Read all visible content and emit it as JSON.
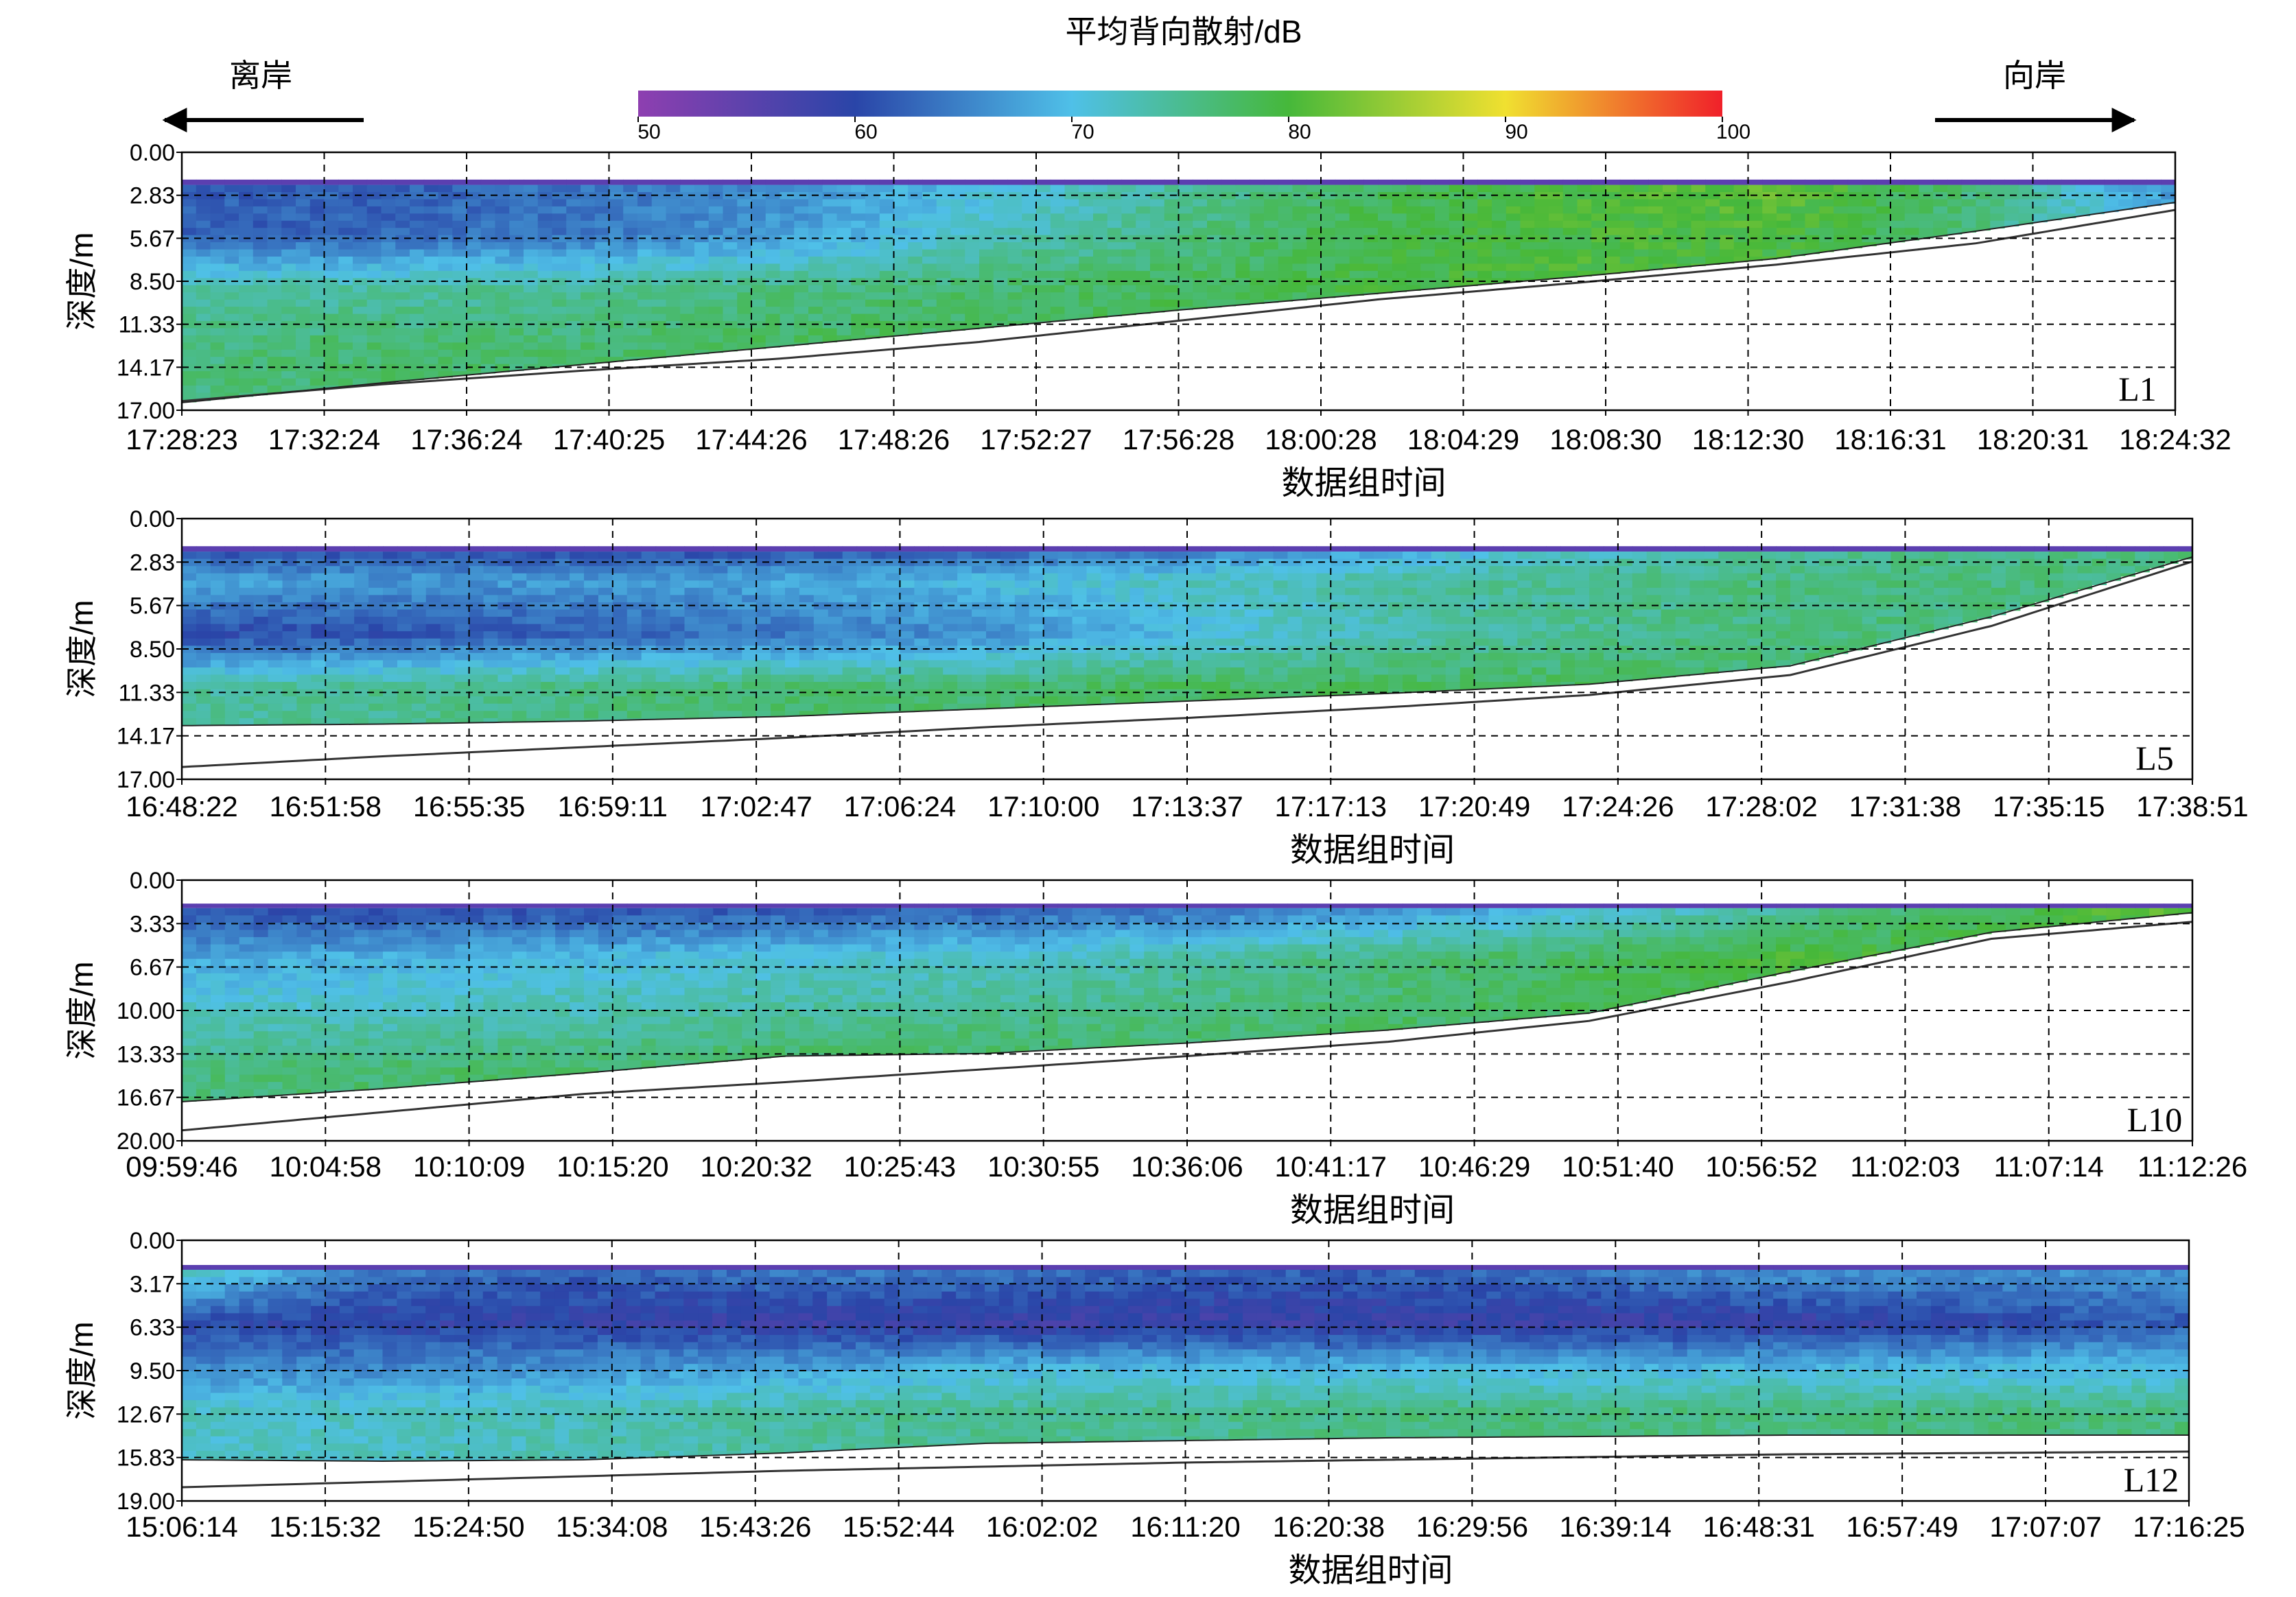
{
  "figure": {
    "colorbar_title": "平均背向散射/dB",
    "colorbar_ticks": [
      "50",
      "60",
      "70",
      "80",
      "90",
      "100"
    ],
    "colorbar_range": [
      50,
      100
    ],
    "colorbar_colors": [
      "#8e3fb0",
      "#2a45a8",
      "#4fc0e8",
      "#46b83a",
      "#f0e030",
      "#f0202a"
    ],
    "offshore_label": "离岸",
    "onshore_label": "向岸"
  },
  "chart_data": [
    {
      "type": "heatmap",
      "panel_label": "L1",
      "xlabel": "数据组时间",
      "ylabel": "深度/m",
      "yticks": [
        "0.00",
        "2.83",
        "5.67",
        "8.50",
        "11.33",
        "14.17",
        "17.00"
      ],
      "ylim": [
        0,
        17
      ],
      "xticks": [
        "17:28:23",
        "17:32:24",
        "17:36:24",
        "17:40:25",
        "17:44:26",
        "17:48:26",
        "17:52:27",
        "17:56:28",
        "18:00:28",
        "18:04:29",
        "18:08:30",
        "18:12:30",
        "18:16:31",
        "18:20:31",
        "18:24:32"
      ],
      "surface_depth": 1.8,
      "bottom_depth": [
        16.5,
        15.2,
        14.0,
        12.8,
        11.6,
        10.4,
        9.3,
        8.2,
        7.0,
        5.2,
        3.3
      ],
      "seabed_depth": [
        16.4,
        15.3,
        14.4,
        13.6,
        12.5,
        11.1,
        9.7,
        8.6,
        7.4,
        6.0,
        3.8
      ],
      "backscatter_profile": [
        {
          "depth": 2.0,
          "values": [
            62,
            62,
            64,
            66,
            70,
            74,
            78,
            80,
            82,
            76,
            66
          ]
        },
        {
          "depth": 5.5,
          "values": [
            62,
            63,
            64,
            67,
            72,
            76,
            79,
            80,
            80,
            76,
            70
          ]
        },
        {
          "depth": 9.0,
          "values": [
            74,
            74,
            75,
            76,
            77,
            78,
            79,
            80,
            79,
            77,
            72
          ]
        },
        {
          "depth": 13.0,
          "values": [
            76,
            77,
            77,
            78,
            78,
            79,
            79,
            79,
            78,
            76,
            72
          ]
        }
      ],
      "grid": true
    },
    {
      "type": "heatmap",
      "panel_label": "L5",
      "xlabel": "数据组时间",
      "ylabel": "深度/m",
      "yticks": [
        "0.00",
        "2.83",
        "5.67",
        "8.50",
        "11.33",
        "14.17",
        "17.00"
      ],
      "ylim": [
        0,
        17
      ],
      "xticks": [
        "16:48:22",
        "16:51:58",
        "16:55:35",
        "16:59:11",
        "17:02:47",
        "17:06:24",
        "17:10:00",
        "17:13:37",
        "17:17:13",
        "17:20:49",
        "17:24:26",
        "17:28:02",
        "17:31:38",
        "17:35:15",
        "17:38:51"
      ],
      "surface_depth": 1.8,
      "bottom_depth": [
        13.5,
        13.4,
        13.2,
        12.9,
        12.4,
        11.9,
        11.4,
        10.8,
        9.6,
        6.4,
        2.5
      ],
      "seabed_depth": [
        16.2,
        15.5,
        14.9,
        14.3,
        13.6,
        13.0,
        12.3,
        11.5,
        10.2,
        7.0,
        2.8
      ],
      "backscatter_profile": [
        {
          "depth": 2.0,
          "values": [
            60,
            60,
            60,
            61,
            62,
            64,
            68,
            72,
            74,
            76,
            76
          ]
        },
        {
          "depth": 4.0,
          "values": [
            68,
            67,
            67,
            68,
            70,
            72,
            74,
            75,
            76,
            76,
            76
          ]
        },
        {
          "depth": 7.5,
          "values": [
            60,
            61,
            62,
            64,
            66,
            70,
            73,
            75,
            76,
            76,
            76
          ]
        },
        {
          "depth": 11.0,
          "values": [
            74,
            75,
            76,
            77,
            77,
            78,
            78,
            78,
            77,
            76,
            76
          ]
        }
      ],
      "grid": true
    },
    {
      "type": "heatmap",
      "panel_label": "L10",
      "xlabel": "数据组时间",
      "ylabel": "深度/m",
      "yticks": [
        "0.00",
        "3.33",
        "6.67",
        "10.00",
        "13.33",
        "16.67",
        "20.00"
      ],
      "ylim": [
        0,
        20
      ],
      "xticks": [
        "09:59:46",
        "10:04:58",
        "10:10:09",
        "10:15:20",
        "10:20:32",
        "10:25:43",
        "10:30:55",
        "10:36:06",
        "10:41:17",
        "10:46:29",
        "10:51:40",
        "10:56:52",
        "11:02:03",
        "11:07:14",
        "11:12:26"
      ],
      "surface_depth": 1.8,
      "bottom_depth": [
        17.0,
        16.0,
        14.8,
        13.5,
        13.3,
        12.5,
        11.5,
        10.2,
        7.0,
        4.0,
        2.5
      ],
      "seabed_depth": [
        19.2,
        17.8,
        16.4,
        15.5,
        14.5,
        13.5,
        12.4,
        10.8,
        7.8,
        4.5,
        3.2
      ],
      "backscatter_profile": [
        {
          "depth": 2.0,
          "values": [
            60,
            60,
            60,
            61,
            62,
            63,
            66,
            70,
            74,
            78,
            82
          ]
        },
        {
          "depth": 6.0,
          "values": [
            68,
            69,
            70,
            71,
            72,
            74,
            76,
            78,
            80,
            80,
            80
          ]
        },
        {
          "depth": 10.0,
          "values": [
            72,
            72,
            73,
            74,
            75,
            76,
            77,
            78,
            78,
            78,
            78
          ]
        },
        {
          "depth": 14.5,
          "values": [
            76,
            77,
            77,
            78,
            78,
            78,
            78,
            78,
            78,
            78,
            78
          ]
        }
      ],
      "grid": true
    },
    {
      "type": "heatmap",
      "panel_label": "L12",
      "xlabel": "数据组时间",
      "ylabel": "深度/m",
      "yticks": [
        "0.00",
        "3.17",
        "6.33",
        "9.50",
        "12.67",
        "15.83",
        "19.00"
      ],
      "ylim": [
        0,
        19
      ],
      "xticks": [
        "15:06:14",
        "15:15:32",
        "15:24:50",
        "15:34:08",
        "15:43:26",
        "15:52:44",
        "16:02:02",
        "16:11:20",
        "16:20:38",
        "16:29:56",
        "16:39:14",
        "16:48:31",
        "16:57:49",
        "17:07:07",
        "17:16:25"
      ],
      "surface_depth": 1.8,
      "bottom_depth": [
        16.0,
        16.1,
        16.0,
        15.5,
        14.8,
        14.6,
        14.4,
        14.3,
        14.2,
        14.2,
        14.2
      ],
      "seabed_depth": [
        18.0,
        17.6,
        17.2,
        16.8,
        16.5,
        16.2,
        16.0,
        15.8,
        15.6,
        15.5,
        15.4
      ],
      "backscatter_profile": [
        {
          "depth": 2.5,
          "values": [
            72,
            64,
            62,
            64,
            64,
            62,
            62,
            64,
            66,
            66,
            66
          ]
        },
        {
          "depth": 6.0,
          "values": [
            60,
            59,
            59,
            58,
            58,
            58,
            58,
            58,
            58,
            60,
            62
          ]
        },
        {
          "depth": 9.5,
          "values": [
            66,
            66,
            67,
            68,
            70,
            70,
            70,
            70,
            70,
            70,
            70
          ]
        },
        {
          "depth": 12.5,
          "values": [
            72,
            72,
            73,
            74,
            75,
            75,
            76,
            76,
            76,
            76,
            76
          ]
        }
      ],
      "grid": true
    }
  ]
}
